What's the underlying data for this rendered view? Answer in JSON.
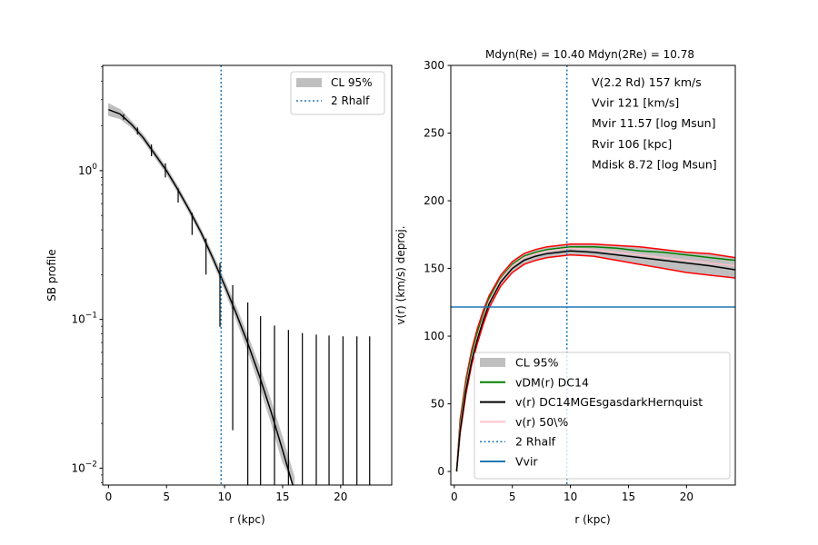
{
  "chart_data": [
    {
      "type": "line",
      "panel": "left",
      "title": "",
      "xlabel": "r (kpc)",
      "ylabel": "SB profile",
      "xlim": [
        -0.5,
        24.4
      ],
      "ylim": [
        0.0077,
        5.1
      ],
      "yscale": "log",
      "xticks": [
        "0",
        "5",
        "10",
        "15",
        "20"
      ],
      "xtick_values": [
        0,
        5,
        10,
        15,
        20
      ],
      "yticks": [
        {
          "base": "10",
          "exp": "0",
          "value": 1
        },
        {
          "base": "10",
          "exp": "−1",
          "value": 0.1
        },
        {
          "base": "10",
          "exp": "−2",
          "value": 0.01
        }
      ],
      "grid": false,
      "legend": {
        "placement": "top-right",
        "entries": [
          {
            "label": "CL 95%",
            "style": "band",
            "color": "#bfbfbf"
          },
          {
            "label": "2 Rhalf",
            "style": "dotted",
            "color": "#1f77b4"
          }
        ]
      },
      "model_curve": {
        "r": [
          0,
          1,
          2,
          3,
          4,
          5,
          6,
          7,
          8,
          9,
          10,
          11,
          12,
          13,
          14,
          15,
          16
        ],
        "log10_sb": [
          0.41,
          0.38,
          0.31,
          0.22,
          0.11,
          0.0,
          -0.13,
          -0.27,
          -0.42,
          -0.59,
          -0.77,
          -0.96,
          -1.16,
          -1.38,
          -1.62,
          -1.88,
          -2.15
        ],
        "cl95_halfwidth_dex": [
          0.04,
          0.03,
          0.02,
          0.02,
          0.02,
          0.02,
          0.02,
          0.02,
          0.02,
          0.025,
          0.03,
          0.04,
          0.05,
          0.06,
          0.07,
          0.08,
          0.09
        ],
        "color": "#000000"
      },
      "data_points": [
        {
          "r": 1.3,
          "value": 2.3,
          "lo": 2.2,
          "hi": 2.4
        },
        {
          "r": 2.5,
          "value": 1.85,
          "lo": 1.75,
          "hi": 1.95
        },
        {
          "r": 3.7,
          "value": 1.38,
          "lo": 1.25,
          "hi": 1.5
        },
        {
          "r": 4.9,
          "value": 1.0,
          "lo": 0.9,
          "hi": 1.12
        },
        {
          "r": 6.0,
          "value": 0.68,
          "lo": 0.61,
          "hi": 0.76
        },
        {
          "r": 7.2,
          "value": 0.44,
          "lo": 0.37,
          "hi": 0.52
        },
        {
          "r": 8.4,
          "value": 0.28,
          "lo": 0.2,
          "hi": 0.35
        },
        {
          "r": 9.6,
          "value": 0.16,
          "lo": 0.089,
          "hi": 0.24
        },
        {
          "r": 10.7,
          "value": 0.1,
          "lo": 0.018,
          "hi": 0.17
        },
        {
          "r": 12.0,
          "value": 0.055,
          "lo": 0.001,
          "hi": 0.13
        },
        {
          "r": 13.1,
          "value": 0.03,
          "lo": 0.001,
          "hi": 0.105
        },
        {
          "r": 14.3,
          "value": 0.016,
          "lo": 0.001,
          "hi": 0.091
        },
        {
          "r": 15.5,
          "value": 0.008,
          "lo": 0.001,
          "hi": 0.085
        },
        {
          "r": 16.7,
          "value": 0.004,
          "lo": 0.001,
          "hi": 0.081
        },
        {
          "r": 17.9,
          "value": 0.002,
          "lo": 0.001,
          "hi": 0.079
        },
        {
          "r": 19.0,
          "value": 0.0015,
          "lo": 0.001,
          "hi": 0.078
        },
        {
          "r": 20.2,
          "value": 0.0012,
          "lo": 0.001,
          "hi": 0.077
        },
        {
          "r": 21.4,
          "value": 0.0011,
          "lo": 0.001,
          "hi": 0.077
        },
        {
          "r": 22.5,
          "value": 0.001,
          "lo": 0.001,
          "hi": 0.077
        }
      ],
      "vline": {
        "x": 9.7,
        "label": "2 Rhalf",
        "color": "#1f77b4"
      }
    },
    {
      "type": "line",
      "panel": "right",
      "title": "Mdyn(Re) = 10.40  Mdyn(2Re) = 10.78",
      "xlabel": "r (kpc)",
      "ylabel": "v(r) (km/s) deproj.",
      "xlim": [
        -0.3,
        24.2
      ],
      "ylim": [
        -10,
        300
      ],
      "xtick_values": [
        0,
        5,
        10,
        15,
        20
      ],
      "xticks": [
        "0",
        "5",
        "10",
        "15",
        "20"
      ],
      "ytick_values": [
        0,
        50,
        100,
        150,
        200,
        250,
        300
      ],
      "yticks": [
        "0",
        "50",
        "100",
        "150",
        "200",
        "250",
        "300"
      ],
      "grid": false,
      "annotations": [
        "V(2.2 Rd) 157 km/s",
        "Vvir 121 [km/s]",
        "Mvir 11.57 [log Msun]",
        "Rvir 106 [kpc]",
        "Mdisk 8.72 [log Msun]"
      ],
      "r": [
        0.2,
        0.5,
        1,
        1.5,
        2,
        2.5,
        3,
        4,
        5,
        6,
        7,
        8,
        10,
        12,
        14,
        16,
        18,
        20,
        22,
        24.2
      ],
      "band": {
        "label": "CL 95%",
        "color": "#bfbfbf",
        "edge_color": "#ff0000",
        "upper": [
          0,
          38,
          68,
          90,
          106,
          119,
          130,
          145,
          155,
          161,
          164,
          166,
          168,
          168,
          167,
          166,
          164,
          162,
          161,
          158
        ],
        "lower": [
          0,
          28,
          57,
          79,
          95,
          109,
          121,
          137,
          147,
          153,
          156,
          158,
          160,
          159,
          156,
          153,
          150,
          147,
          145,
          143
        ]
      },
      "series": [
        {
          "name": "vDM(r) DC14",
          "color": "#008000",
          "values": [
            0,
            35,
            65,
            87,
            103,
            116,
            128,
            143,
            153,
            159,
            162,
            164,
            166,
            166,
            165,
            163,
            162,
            160,
            158,
            156
          ]
        },
        {
          "name": "v(r) 50\\%",
          "color": "#ffc0cb",
          "values": [
            0,
            32,
            62,
            84,
            100,
            114,
            126,
            142,
            152,
            158,
            161,
            163,
            165,
            164,
            162,
            160,
            158,
            156,
            154,
            152
          ]
        },
        {
          "name": "v(r) DC14MGEsgasdarkHernquist",
          "color": "#000000",
          "values": [
            0,
            30,
            60,
            82,
            98,
            112,
            124,
            140,
            150,
            156,
            159,
            161,
            163,
            162,
            160,
            158,
            156,
            154,
            152,
            149
          ]
        }
      ],
      "vline": {
        "x": 9.7,
        "label": "2 Rhalf",
        "color": "#1f77b4"
      },
      "hline": {
        "y": 121.5,
        "label": "Vvir",
        "color": "#1f77b4"
      },
      "legend": {
        "placement": "lower-right",
        "entries": [
          {
            "label": "CL 95%",
            "style": "band",
            "color": "#bfbfbf"
          },
          {
            "label": "vDM(r) DC14",
            "style": "line",
            "color": "#008000"
          },
          {
            "label": "v(r) DC14MGEsgasdarkHernquist",
            "style": "line",
            "color": "#000000"
          },
          {
            "label": "v(r) 50\\%",
            "style": "line",
            "color": "#ffc0cb"
          },
          {
            "label": "2 Rhalf",
            "style": "dotted",
            "color": "#1f77b4"
          },
          {
            "label": "Vvir",
            "style": "line",
            "color": "#1f77b4"
          }
        ]
      }
    }
  ]
}
